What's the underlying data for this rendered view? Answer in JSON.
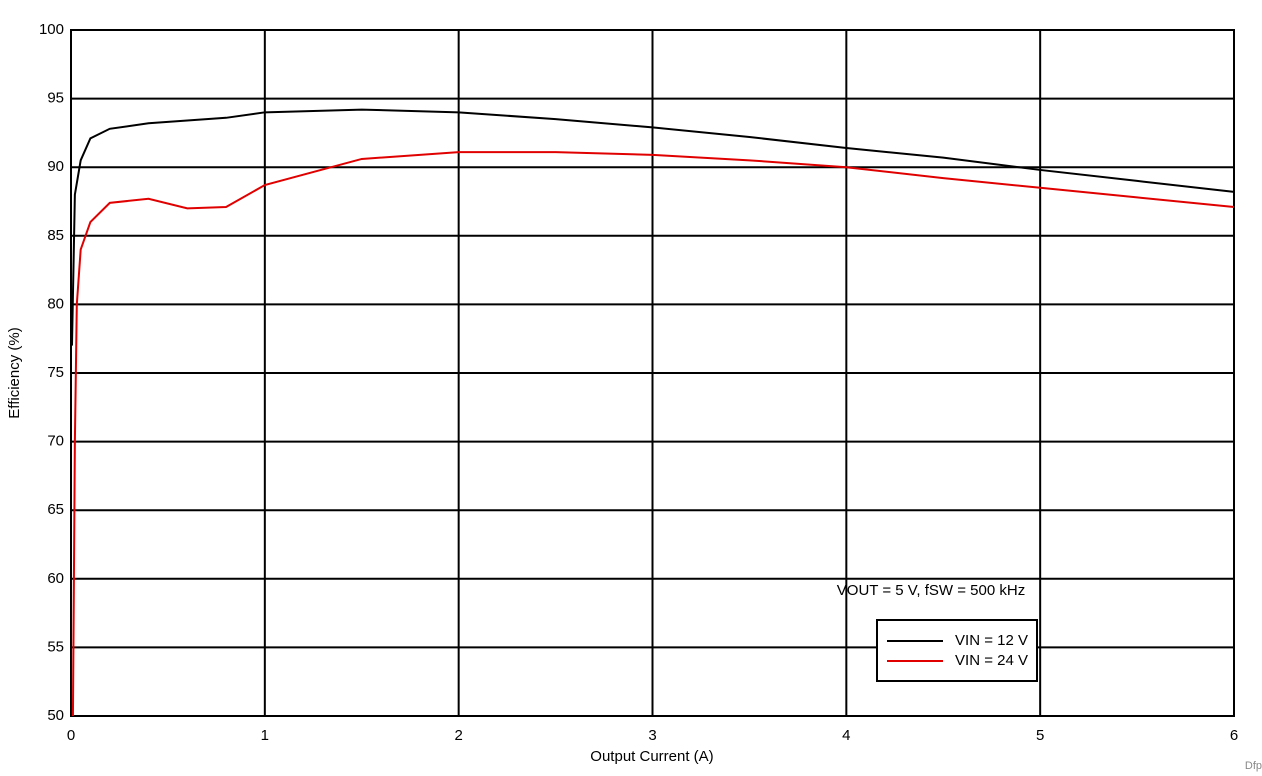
{
  "chart_data": {
    "type": "line",
    "x_label": "Output Current (A)",
    "y_label": "Efficiency (%)",
    "annotation": "VOUT = 5 V, fSW = 500 kHz",
    "footnote": "Dfp",
    "xlim": [
      0,
      6
    ],
    "xticks": [
      0,
      1,
      2,
      3,
      4,
      5,
      6
    ],
    "ylim": [
      50,
      100
    ],
    "yticks": [
      50,
      55,
      60,
      65,
      70,
      75,
      80,
      85,
      90,
      95,
      100
    ],
    "grid": true,
    "legend": "lower right",
    "series": [
      {
        "name": "VIN = 12 V",
        "color": "#000000",
        "x": [
          0.005,
          0.02,
          0.05,
          0.1,
          0.2,
          0.4,
          0.6,
          0.8,
          1,
          1.5,
          2,
          2.5,
          3,
          3.5,
          4,
          4.5,
          5,
          5.5,
          6
        ],
        "values": [
          77,
          88,
          90.5,
          92.1,
          92.8,
          93.2,
          93.4,
          93.6,
          94.0,
          94.2,
          94.0,
          93.5,
          92.9,
          92.2,
          91.4,
          90.7,
          89.8,
          89.0,
          88.2
        ]
      },
      {
        "name": "VIN = 24 V",
        "color": "#e00000",
        "x": [
          0.01,
          0.02,
          0.03,
          0.05,
          0.1,
          0.2,
          0.4,
          0.6,
          0.8,
          1,
          1.5,
          2,
          2.5,
          3,
          3.5,
          4,
          4.5,
          5,
          5.5,
          6
        ],
        "values": [
          50,
          70,
          80,
          84,
          86,
          87.4,
          87.7,
          87.0,
          87.1,
          88.7,
          90.6,
          91.1,
          91.1,
          90.9,
          90.5,
          90.0,
          89.2,
          88.5,
          87.8,
          87.1
        ]
      }
    ]
  }
}
